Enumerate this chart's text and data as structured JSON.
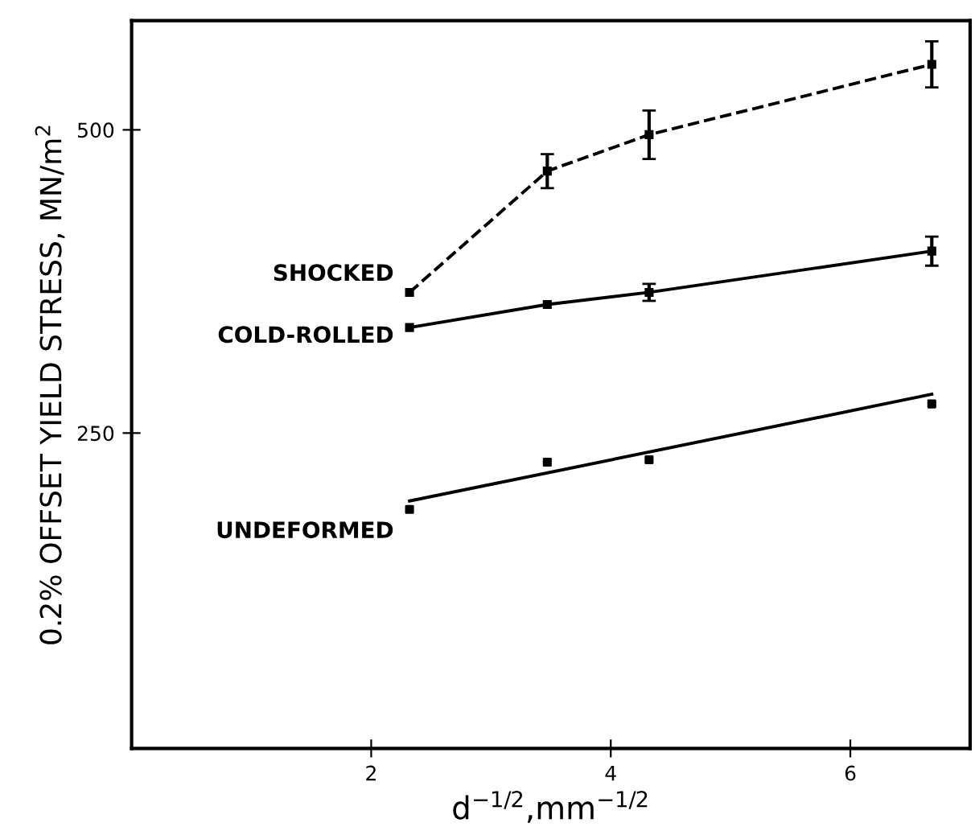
{
  "chart_data": {
    "type": "line",
    "xlabel": "d$^{−1/2}$,mm$^{−1/2}$",
    "ylabel": "0.2% OFFSET YIELD STRESS, MN/m$^{2}$",
    "xlim": [
      0,
      7
    ],
    "xticks": [
      2,
      4,
      6
    ],
    "ylim": [
      -10,
      590
    ],
    "yticks": [
      250,
      500
    ],
    "grid": false,
    "legend": false,
    "marker": "square",
    "series": [
      {
        "name": "SHOCKED",
        "color": "#000000",
        "line_style": "dashed",
        "x": [
          2.32,
          3.47,
          4.32,
          6.68
        ],
        "values": [
          366,
          466,
          496,
          554
        ],
        "errors": [
          null,
          14,
          20,
          19
        ]
      },
      {
        "name": "COLD-ROLLED",
        "color": "#000000",
        "line_style": "solid",
        "x": [
          2.32,
          3.47,
          4.32,
          6.68
        ],
        "values": [
          337,
          356,
          366,
          400
        ],
        "errors": [
          null,
          null,
          7,
          12
        ]
      },
      {
        "name": "UNDEFORMED",
        "type": "scatter",
        "color": "#000000",
        "x": [
          2.32,
          3.47,
          4.32,
          6.68
        ],
        "values": [
          187,
          226,
          228,
          274
        ]
      },
      {
        "type": "line",
        "color": "#000000",
        "line_style": "solid",
        "marker": "none",
        "x": [
          2.32,
          6.68
        ],
        "values": [
          194,
          282
        ]
      }
    ]
  }
}
